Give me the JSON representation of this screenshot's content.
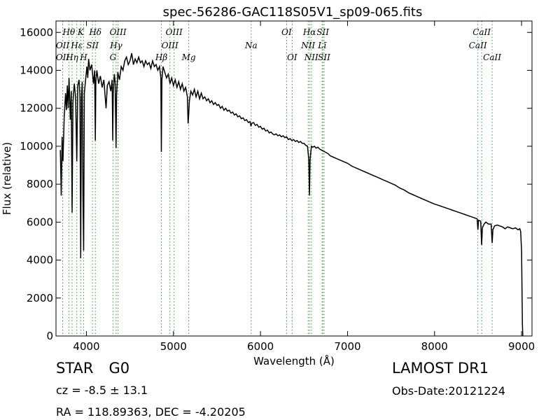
{
  "chart_data": {
    "type": "line",
    "title": "spec-56286-GAC118S05V1_sp09-065.fits",
    "xlabel": "Wavelength (Å)",
    "ylabel": "Flux (relative)",
    "xlim": [
      3650,
      9120
    ],
    "ylim": [
      0,
      16600
    ],
    "xticks": [
      4000,
      5000,
      6000,
      7000,
      8000,
      9000
    ],
    "yticks": [
      0,
      2000,
      4000,
      6000,
      8000,
      10000,
      12000,
      14000,
      16000
    ],
    "grid": false,
    "series": [
      {
        "line_color": "#000000",
        "points": [
          [
            3700,
            9800
          ],
          [
            3710,
            7400
          ],
          [
            3720,
            10500
          ],
          [
            3730,
            9200
          ],
          [
            3745,
            11600
          ],
          [
            3760,
            12800
          ],
          [
            3770,
            11900
          ],
          [
            3780,
            13200
          ],
          [
            3790,
            12000
          ],
          [
            3800,
            13600
          ],
          [
            3815,
            11400
          ],
          [
            3825,
            12900
          ],
          [
            3835,
            6500
          ],
          [
            3845,
            12300
          ],
          [
            3860,
            13300
          ],
          [
            3875,
            12600
          ],
          [
            3889,
            9200
          ],
          [
            3900,
            13200
          ],
          [
            3915,
            13500
          ],
          [
            3925,
            12700
          ],
          [
            3934,
            4100
          ],
          [
            3942,
            12500
          ],
          [
            3952,
            13400
          ],
          [
            3960,
            7500
          ],
          [
            3968,
            4500
          ],
          [
            3976,
            12800
          ],
          [
            3990,
            13500
          ],
          [
            4005,
            14200
          ],
          [
            4015,
            13600
          ],
          [
            4025,
            14600
          ],
          [
            4040,
            14000
          ],
          [
            4060,
            14300
          ],
          [
            4080,
            13300
          ],
          [
            4095,
            14000
          ],
          [
            4102,
            10300
          ],
          [
            4108,
            13400
          ],
          [
            4120,
            14000
          ],
          [
            4140,
            13300
          ],
          [
            4160,
            13700
          ],
          [
            4180,
            13100
          ],
          [
            4200,
            13500
          ],
          [
            4225,
            12000
          ],
          [
            4240,
            13200
          ],
          [
            4260,
            13400
          ],
          [
            4280,
            12900
          ],
          [
            4295,
            13500
          ],
          [
            4302,
            10300
          ],
          [
            4308,
            12800
          ],
          [
            4320,
            13800
          ],
          [
            4330,
            13400
          ],
          [
            4340,
            9900
          ],
          [
            4346,
            12700
          ],
          [
            4360,
            13900
          ],
          [
            4380,
            13500
          ],
          [
            4400,
            14200
          ],
          [
            4420,
            14000
          ],
          [
            4440,
            14500
          ],
          [
            4460,
            14700
          ],
          [
            4480,
            14300
          ],
          [
            4500,
            14500
          ],
          [
            4520,
            14900
          ],
          [
            4540,
            14300
          ],
          [
            4560,
            14600
          ],
          [
            4580,
            14400
          ],
          [
            4600,
            14700
          ],
          [
            4620,
            14400
          ],
          [
            4640,
            14500
          ],
          [
            4660,
            14200
          ],
          [
            4680,
            14500
          ],
          [
            4700,
            14300
          ],
          [
            4720,
            14400
          ],
          [
            4740,
            14100
          ],
          [
            4760,
            14500
          ],
          [
            4780,
            14200
          ],
          [
            4800,
            14300
          ],
          [
            4820,
            14000
          ],
          [
            4840,
            14200
          ],
          [
            4855,
            13600
          ],
          [
            4861,
            9700
          ],
          [
            4867,
            13500
          ],
          [
            4880,
            14200
          ],
          [
            4900,
            13900
          ],
          [
            4920,
            13600
          ],
          [
            4940,
            13800
          ],
          [
            4960,
            13300
          ],
          [
            4980,
            13600
          ],
          [
            5000,
            13200
          ],
          [
            5020,
            13500
          ],
          [
            5040,
            13100
          ],
          [
            5060,
            13400
          ],
          [
            5080,
            13000
          ],
          [
            5100,
            13300
          ],
          [
            5120,
            12900
          ],
          [
            5140,
            13100
          ],
          [
            5160,
            12600
          ],
          [
            5168,
            11200
          ],
          [
            5175,
            11700
          ],
          [
            5183,
            12400
          ],
          [
            5200,
            12900
          ],
          [
            5220,
            12700
          ],
          [
            5240,
            13000
          ],
          [
            5260,
            12600
          ],
          [
            5280,
            12900
          ],
          [
            5300,
            12500
          ],
          [
            5320,
            12800
          ],
          [
            5340,
            12500
          ],
          [
            5360,
            12600
          ],
          [
            5380,
            12400
          ],
          [
            5400,
            12500
          ],
          [
            5420,
            12300
          ],
          [
            5440,
            12400
          ],
          [
            5460,
            12200
          ],
          [
            5480,
            12300
          ],
          [
            5500,
            12150
          ],
          [
            5520,
            12200
          ],
          [
            5540,
            12000
          ],
          [
            5560,
            12100
          ],
          [
            5580,
            11900
          ],
          [
            5600,
            12000
          ],
          [
            5620,
            11850
          ],
          [
            5640,
            11900
          ],
          [
            5660,
            11750
          ],
          [
            5680,
            11800
          ],
          [
            5700,
            11650
          ],
          [
            5720,
            11700
          ],
          [
            5740,
            11550
          ],
          [
            5760,
            11600
          ],
          [
            5780,
            11450
          ],
          [
            5800,
            11500
          ],
          [
            5820,
            11350
          ],
          [
            5840,
            11400
          ],
          [
            5860,
            11250
          ],
          [
            5880,
            11300
          ],
          [
            5890,
            11050
          ],
          [
            5900,
            11200
          ],
          [
            5920,
            11250
          ],
          [
            5940,
            11100
          ],
          [
            5960,
            11150
          ],
          [
            5980,
            11000
          ],
          [
            6000,
            11050
          ],
          [
            6020,
            10900
          ],
          [
            6040,
            10950
          ],
          [
            6060,
            10800
          ],
          [
            6080,
            10850
          ],
          [
            6100,
            10700
          ],
          [
            6120,
            10750
          ],
          [
            6140,
            10650
          ],
          [
            6160,
            10600
          ],
          [
            6180,
            10650
          ],
          [
            6200,
            10550
          ],
          [
            6220,
            10600
          ],
          [
            6240,
            10500
          ],
          [
            6260,
            10550
          ],
          [
            6280,
            10450
          ],
          [
            6300,
            10500
          ],
          [
            6320,
            10350
          ],
          [
            6340,
            10400
          ],
          [
            6360,
            10300
          ],
          [
            6380,
            10350
          ],
          [
            6400,
            10250
          ],
          [
            6420,
            10300
          ],
          [
            6440,
            10200
          ],
          [
            6460,
            10250
          ],
          [
            6480,
            10150
          ],
          [
            6500,
            10150
          ],
          [
            6520,
            10050
          ],
          [
            6540,
            10000
          ],
          [
            6555,
            9300
          ],
          [
            6563,
            7400
          ],
          [
            6570,
            9300
          ],
          [
            6585,
            10000
          ],
          [
            6600,
            9950
          ],
          [
            6620,
            10000
          ],
          [
            6640,
            9900
          ],
          [
            6660,
            9950
          ],
          [
            6680,
            9850
          ],
          [
            6700,
            9800
          ],
          [
            6720,
            9750
          ],
          [
            6740,
            9700
          ],
          [
            6760,
            9650
          ],
          [
            6780,
            9600
          ],
          [
            6800,
            9500
          ],
          [
            6850,
            9400
          ],
          [
            6900,
            9300
          ],
          [
            6950,
            9200
          ],
          [
            7000,
            9100
          ],
          [
            7050,
            8950
          ],
          [
            7100,
            8850
          ],
          [
            7150,
            8750
          ],
          [
            7200,
            8650
          ],
          [
            7250,
            8550
          ],
          [
            7300,
            8450
          ],
          [
            7350,
            8350
          ],
          [
            7400,
            8250
          ],
          [
            7450,
            8150
          ],
          [
            7500,
            8050
          ],
          [
            7550,
            7950
          ],
          [
            7600,
            7800
          ],
          [
            7650,
            7700
          ],
          [
            7700,
            7550
          ],
          [
            7750,
            7450
          ],
          [
            7800,
            7350
          ],
          [
            7850,
            7250
          ],
          [
            7900,
            7150
          ],
          [
            7950,
            7050
          ],
          [
            8000,
            6950
          ],
          [
            8050,
            6880
          ],
          [
            8100,
            6800
          ],
          [
            8150,
            6720
          ],
          [
            8200,
            6640
          ],
          [
            8250,
            6560
          ],
          [
            8300,
            6480
          ],
          [
            8350,
            6400
          ],
          [
            8400,
            6320
          ],
          [
            8450,
            6240
          ],
          [
            8490,
            6170
          ],
          [
            8498,
            5600
          ],
          [
            8506,
            6100
          ],
          [
            8530,
            6050
          ],
          [
            8542,
            4800
          ],
          [
            8550,
            5700
          ],
          [
            8570,
            5900
          ],
          [
            8590,
            6000
          ],
          [
            8620,
            5900
          ],
          [
            8650,
            5900
          ],
          [
            8662,
            4900
          ],
          [
            8670,
            5600
          ],
          [
            8690,
            5800
          ],
          [
            8720,
            5850
          ],
          [
            8750,
            5800
          ],
          [
            8780,
            5750
          ],
          [
            8810,
            5650
          ],
          [
            8840,
            5750
          ],
          [
            8870,
            5700
          ],
          [
            8900,
            5650
          ],
          [
            8930,
            5700
          ],
          [
            8960,
            5600
          ],
          [
            8980,
            5650
          ],
          [
            8990,
            5500
          ],
          [
            9000,
            4500
          ],
          [
            9005,
            2500
          ],
          [
            9010,
            600
          ],
          [
            9015,
            0
          ]
        ]
      }
    ],
    "lines": [
      {
        "name": "OII",
        "wave": 3727,
        "row": 1
      },
      {
        "name": "OII",
        "wave": 3727,
        "row": 2
      },
      {
        "name": "Hθ",
        "wave": 3798,
        "row": 0
      },
      {
        "name": "Hη",
        "wave": 3835,
        "row": 2
      },
      {
        "name": "K",
        "wave": 3934,
        "row": 0
      },
      {
        "name": "Hε",
        "wave": 3889,
        "row": 1
      },
      {
        "name": "SII",
        "wave": 4069,
        "row": 1
      },
      {
        "name": "H",
        "wave": 3968,
        "row": 2
      },
      {
        "name": "Hδ",
        "wave": 4102,
        "row": 0
      },
      {
        "name": "OIII",
        "wave": 4363,
        "row": 0
      },
      {
        "name": "Hγ",
        "wave": 4341,
        "row": 1
      },
      {
        "name": "G",
        "wave": 4305,
        "row": 2
      },
      {
        "name": "OIII",
        "wave": 5007,
        "row": 0
      },
      {
        "name": "OIII",
        "wave": 4959,
        "row": 1
      },
      {
        "name": "Hβ",
        "wave": 4861,
        "row": 2
      },
      {
        "name": "Mg",
        "wave": 5175,
        "row": 2
      },
      {
        "name": "Na",
        "wave": 5893,
        "row": 1
      },
      {
        "name": "OI",
        "wave": 6300,
        "row": 0
      },
      {
        "name": "OI",
        "wave": 6364,
        "row": 2
      },
      {
        "name": "Hα",
        "wave": 6563,
        "row": 0
      },
      {
        "name": "SII",
        "wave": 6716,
        "row": 0
      },
      {
        "name": "NII",
        "wave": 6548,
        "row": 1
      },
      {
        "name": "Lī",
        "wave": 6708,
        "row": 1
      },
      {
        "name": "NII",
        "wave": 6584,
        "row": 2
      },
      {
        "name": "SII",
        "wave": 6731,
        "row": 2
      },
      {
        "name": "CaII",
        "wave": 8542,
        "row": 0
      },
      {
        "name": "CaII",
        "wave": 8498,
        "row": 1
      },
      {
        "name": "CaII",
        "wave": 8662,
        "row": 2
      }
    ],
    "line_color": "#2ca02c"
  },
  "info": {
    "class": "STAR",
    "subclass": "G0",
    "survey": "LAMOST DR1",
    "cz": "cz = -8.5 ± 13.1",
    "obs_date": "Obs-Date:20121224",
    "coords": "RA = 118.89363, DEC = -4.20205"
  }
}
